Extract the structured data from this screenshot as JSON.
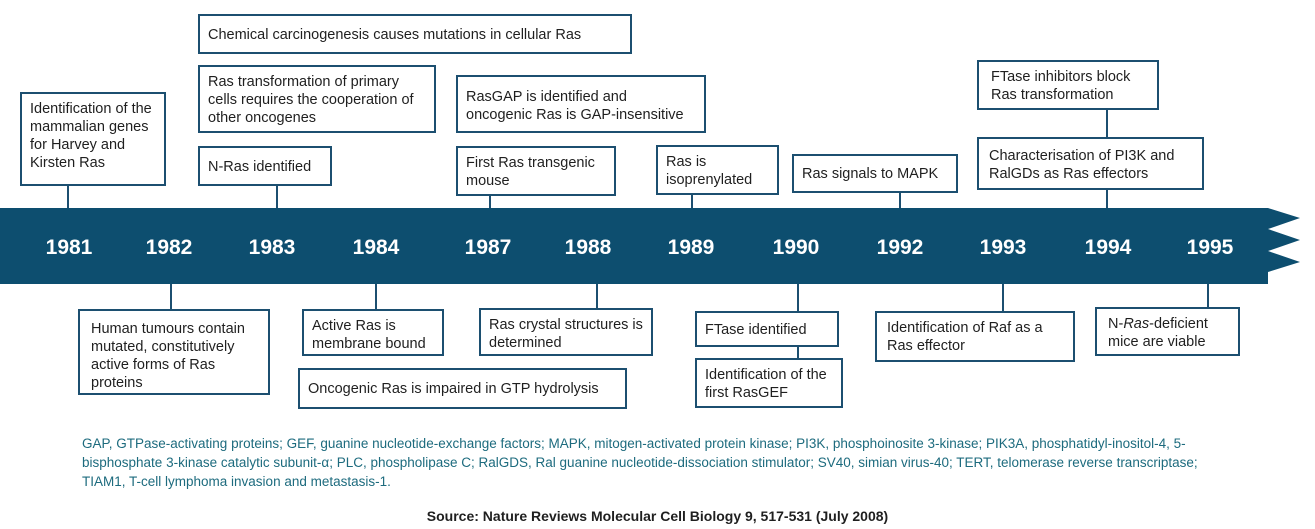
{
  "colors": {
    "band": "#0d4e6f",
    "line": "#1c4f70",
    "year_text": "#ffffff",
    "footnote": "#1d6b7e"
  },
  "years": [
    "1981",
    "1982",
    "1983",
    "1984",
    "1987",
    "1988",
    "1989",
    "1990",
    "1992",
    "1993",
    "1994",
    "1995"
  ],
  "events_above": [
    {
      "year": "1981",
      "text": "Identification of the mammalian genes for Harvey and Kirsten Ras"
    },
    {
      "year": "1983",
      "text": "Chemical carcinogenesis causes mutations in cellular Ras"
    },
    {
      "year": "1983",
      "text": "Ras transformation of primary cells requires the cooperation of other oncogenes"
    },
    {
      "year": "1983",
      "text": "N-Ras identified"
    },
    {
      "year": "1987",
      "text": "RasGAP is identified and oncogenic Ras is GAP-insensitive"
    },
    {
      "year": "1987",
      "text": "First Ras transgenic mouse"
    },
    {
      "year": "1989",
      "text": "Ras is isoprenylated"
    },
    {
      "year": "1992",
      "text": "Ras signals to MAPK"
    },
    {
      "year": "1994",
      "text": "FTase inhibitors block Ras transformation"
    },
    {
      "year": "1994",
      "text": "Characterisation of PI3K and RalGDs as Ras effectors"
    }
  ],
  "events_below": [
    {
      "year": "1982",
      "text": "Human tumours contain mutated, constitutively active forms of Ras proteins"
    },
    {
      "year": "1984",
      "text": "Active Ras is membrane bound"
    },
    {
      "year": "1984",
      "text": "Oncogenic Ras is impaired in GTP hydrolysis"
    },
    {
      "year": "1988",
      "text": "Ras crystal structures is determined"
    },
    {
      "year": "1990",
      "text": "FTase identified"
    },
    {
      "year": "1990",
      "text": "Identification of the first RasGEF"
    },
    {
      "year": "1993",
      "text": "Identification of Raf as a Ras effector"
    },
    {
      "year": "1995",
      "text": "N-Ras-deficient mice are viable",
      "pre": "N-",
      "italic": "Ras",
      "post": "-deficient mice are viable"
    }
  ],
  "footnote": "GAP, GTPase-activating proteins; GEF, guanine nucleotide-exchange factors; MAPK, mitogen-activated protein kinase; PI3K, phosphoinosite 3-kinase; PIK3A, phosphatidyl-inositol-4, 5-bisphosphate 3-kinase catalytic subunit-α; PLC, phospholipase C; RalGDS, Ral guanine nucleotide-dissociation stimulator; SV40, simian virus-40; TERT, telomerase reverse transcriptase; TIAM1, T-cell lymphoma invasion and metastasis-1.",
  "source": "Source: Nature Reviews Molecular Cell Biology 9, 517-531 (July 2008)"
}
